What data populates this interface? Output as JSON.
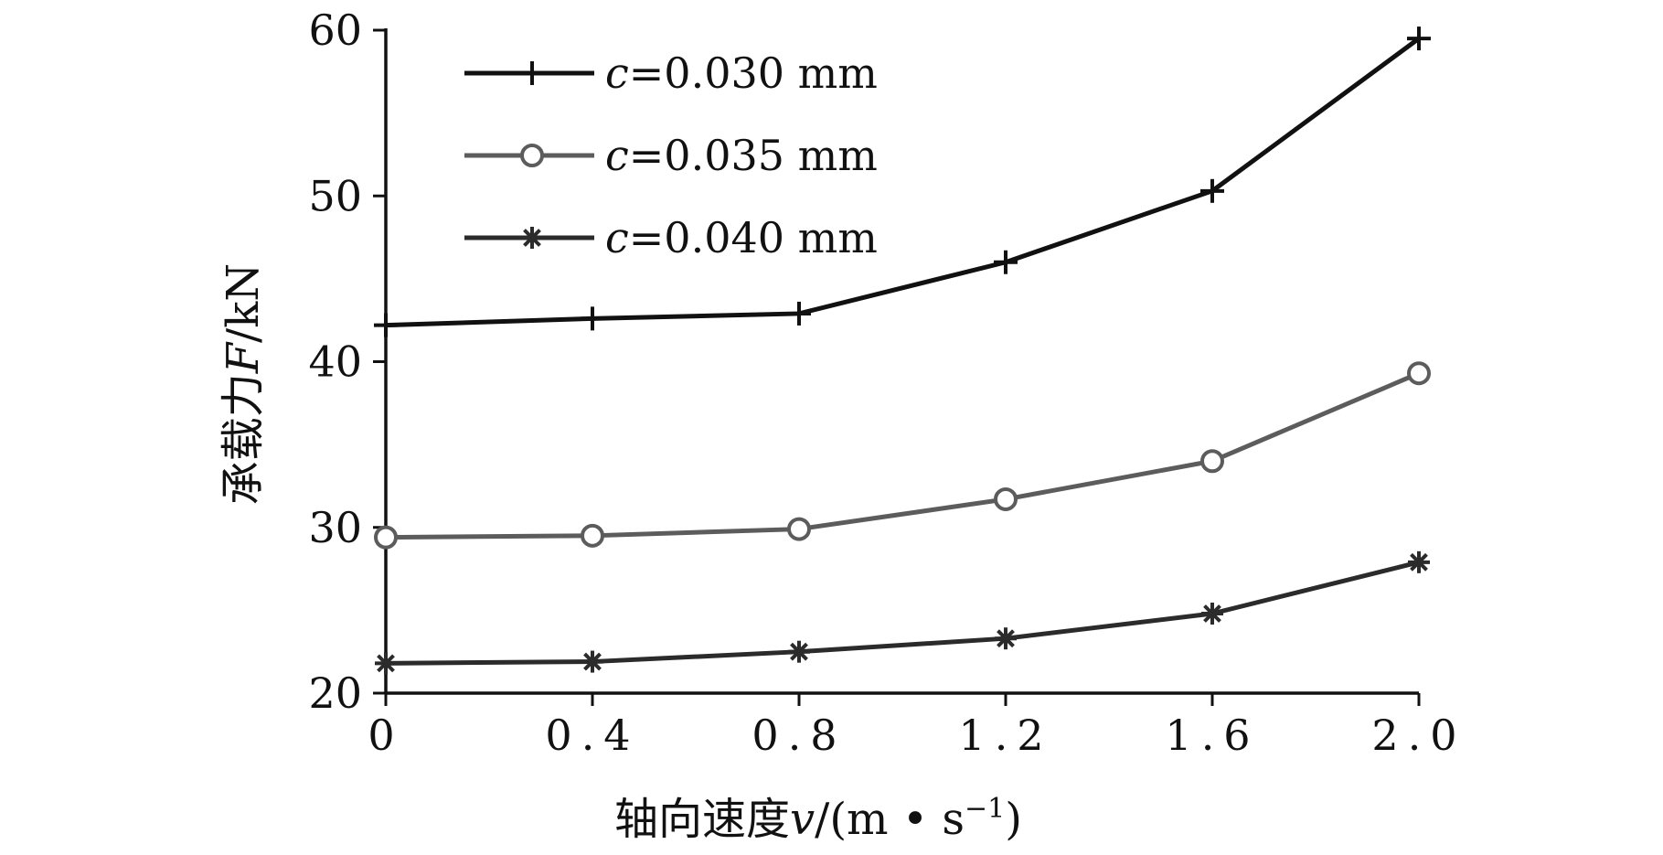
{
  "chart_data": {
    "type": "line",
    "xlabel_prefix": "轴向速度",
    "xlabel_var": "v",
    "xlabel_unit_open": "/(m • s",
    "xlabel_unit_sup": "−1",
    "xlabel_unit_close": ")",
    "ylabel_prefix": "承载力",
    "ylabel_var": "F",
    "ylabel_unit": "/kN",
    "x": [
      0,
      0.4,
      0.8,
      1.2,
      1.6,
      2.0
    ],
    "x_tick_labels": [
      "0",
      "0.4",
      "0.8",
      "1.2",
      "1.6",
      "2.0"
    ],
    "y_ticks": [
      20,
      30,
      40,
      50,
      60
    ],
    "y_tick_labels": [
      "20",
      "30",
      "40",
      "50",
      "60"
    ],
    "xlim": [
      0,
      2.0
    ],
    "ylim": [
      20,
      60
    ],
    "grid": false,
    "legend_position": "top-left",
    "series": [
      {
        "name_var": "c",
        "name_rest": "=0.030 mm",
        "marker": "plus",
        "color": "#111111",
        "values": [
          42.2,
          42.6,
          42.9,
          46.0,
          50.3,
          59.5
        ]
      },
      {
        "name_var": "c",
        "name_rest": "=0.035 mm",
        "marker": "circle",
        "color": "#5c5c5c",
        "values": [
          29.4,
          29.5,
          29.9,
          31.7,
          34.0,
          39.3
        ]
      },
      {
        "name_var": "c",
        "name_rest": "=0.040 mm",
        "marker": "asterisk",
        "color": "#2b2b2b",
        "values": [
          21.8,
          21.9,
          22.5,
          23.3,
          24.8,
          27.9
        ]
      }
    ]
  }
}
